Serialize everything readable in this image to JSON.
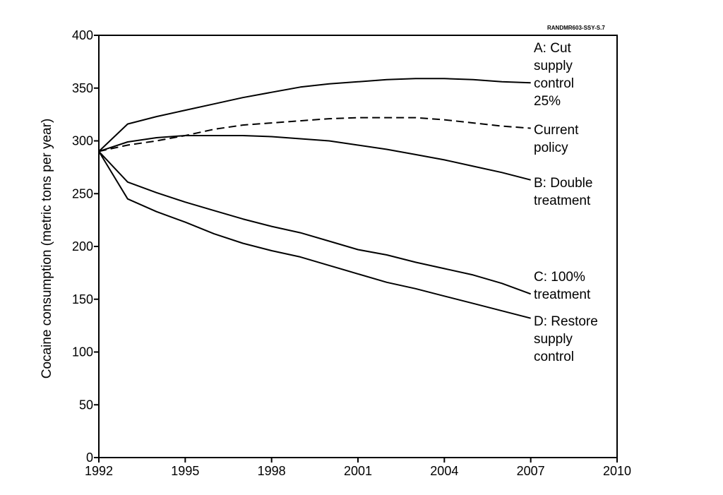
{
  "figure_code": "RANDMR603-SSY-S.7",
  "chart_data": {
    "type": "line",
    "title": "",
    "xlabel": "",
    "ylabel": "Cocaine consumption (metric tons per year)",
    "xlim": [
      1992,
      2010
    ],
    "ylim": [
      0,
      400
    ],
    "x_ticks": [
      1992,
      1995,
      1998,
      2001,
      2004,
      2007,
      2010
    ],
    "y_ticks": [
      0,
      50,
      100,
      150,
      200,
      250,
      300,
      350,
      400
    ],
    "grid": false,
    "legend": "direct labels at right end of each line",
    "series": [
      {
        "name": "A: Cut supply control 25%",
        "label_lines": [
          "A: Cut",
          "supply",
          "control",
          "25%"
        ],
        "style": "solid",
        "x": [
          1992,
          1993,
          1994,
          1995,
          1996,
          1997,
          1998,
          1999,
          2000,
          2001,
          2002,
          2003,
          2004,
          2005,
          2006,
          2007
        ],
        "y": [
          290,
          316,
          323,
          329,
          335,
          341,
          346,
          351,
          354,
          356,
          358,
          359,
          359,
          358,
          356,
          355
        ]
      },
      {
        "name": "Current policy",
        "label_lines": [
          "Current",
          "policy"
        ],
        "style": "dashed",
        "x": [
          1992,
          1993,
          1994,
          1995,
          1996,
          1997,
          1998,
          1999,
          2000,
          2001,
          2002,
          2003,
          2004,
          2005,
          2006,
          2007
        ],
        "y": [
          290,
          296,
          300,
          305,
          311,
          315,
          317,
          319,
          321,
          322,
          322,
          322,
          320,
          317,
          314,
          312
        ]
      },
      {
        "name": "B: Double treatment",
        "label_lines": [
          "B: Double",
          "treatment"
        ],
        "style": "solid",
        "x": [
          1992,
          1993,
          1994,
          1995,
          1996,
          1997,
          1998,
          1999,
          2000,
          2001,
          2002,
          2003,
          2004,
          2005,
          2006,
          2007
        ],
        "y": [
          290,
          299,
          303,
          305,
          305,
          305,
          304,
          302,
          300,
          296,
          292,
          287,
          282,
          276,
          270,
          263
        ]
      },
      {
        "name": "C: 100% treatment",
        "label_lines": [
          "C: 100%",
          "treatment"
        ],
        "style": "solid",
        "x": [
          1992,
          1993,
          1994,
          1995,
          1996,
          1997,
          1998,
          1999,
          2000,
          2001,
          2002,
          2003,
          2004,
          2005,
          2006,
          2007
        ],
        "y": [
          290,
          261,
          251,
          242,
          234,
          226,
          219,
          213,
          205,
          197,
          192,
          185,
          179,
          173,
          165,
          155
        ]
      },
      {
        "name": "D: Restore supply control",
        "label_lines": [
          "D: Restore",
          "supply",
          "control"
        ],
        "style": "solid",
        "x": [
          1992,
          1993,
          1994,
          1995,
          1996,
          1997,
          1998,
          1999,
          2000,
          2001,
          2002,
          2003,
          2004,
          2005,
          2006,
          2007
        ],
        "y": [
          290,
          245,
          233,
          223,
          212,
          203,
          196,
          190,
          182,
          174,
          166,
          160,
          153,
          146,
          139,
          132
        ]
      }
    ]
  }
}
